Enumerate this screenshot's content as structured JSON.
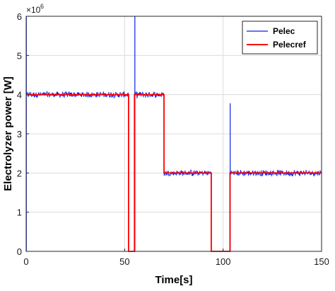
{
  "chart_data": {
    "type": "line",
    "title": "",
    "xlabel": "Time[s]",
    "ylabel": "Electrolyzer power [W]",
    "xlim": [
      0,
      150
    ],
    "ylim": [
      0,
      6
    ],
    "y_multiplier_label": "×10",
    "y_multiplier_exponent": "6",
    "x_ticks": [
      0,
      50,
      100,
      150
    ],
    "y_ticks": [
      0,
      1,
      2,
      3,
      4,
      5,
      6
    ],
    "grid": true,
    "legend_position": "top-right",
    "series": [
      {
        "name": "Pelec",
        "color": "#0a1ee6",
        "noise_band": 0.09,
        "segments": [
          {
            "x_start": 0,
            "x_end": 52,
            "y": 4.0,
            "noisy": true
          },
          {
            "x_start": 52,
            "x_end": 55,
            "y": 0.0,
            "noisy": false
          },
          {
            "x_start": 55,
            "x_end": 70,
            "y": 4.0,
            "noisy": true
          },
          {
            "x_start": 70,
            "x_end": 94,
            "y": 2.0,
            "noisy": true
          },
          {
            "x_start": 94,
            "x_end": 103.5,
            "y": 0.0,
            "noisy": false
          },
          {
            "x_start": 103.5,
            "x_end": 150,
            "y": 2.0,
            "noisy": true
          }
        ],
        "spikes": [
          {
            "x": 0.1,
            "y": 6.0
          },
          {
            "x": 55.2,
            "y": 6.0
          },
          {
            "x": 103.6,
            "y": 3.78
          }
        ]
      },
      {
        "name": "Pelecref",
        "color": "#ff0000",
        "points": [
          [
            0,
            4
          ],
          [
            52,
            4
          ],
          [
            52,
            0
          ],
          [
            55,
            0
          ],
          [
            55,
            4
          ],
          [
            70,
            4
          ],
          [
            70,
            2
          ],
          [
            94,
            2
          ],
          [
            94,
            0
          ],
          [
            103.5,
            0
          ],
          [
            103.5,
            2
          ],
          [
            150,
            2
          ]
        ]
      }
    ]
  }
}
